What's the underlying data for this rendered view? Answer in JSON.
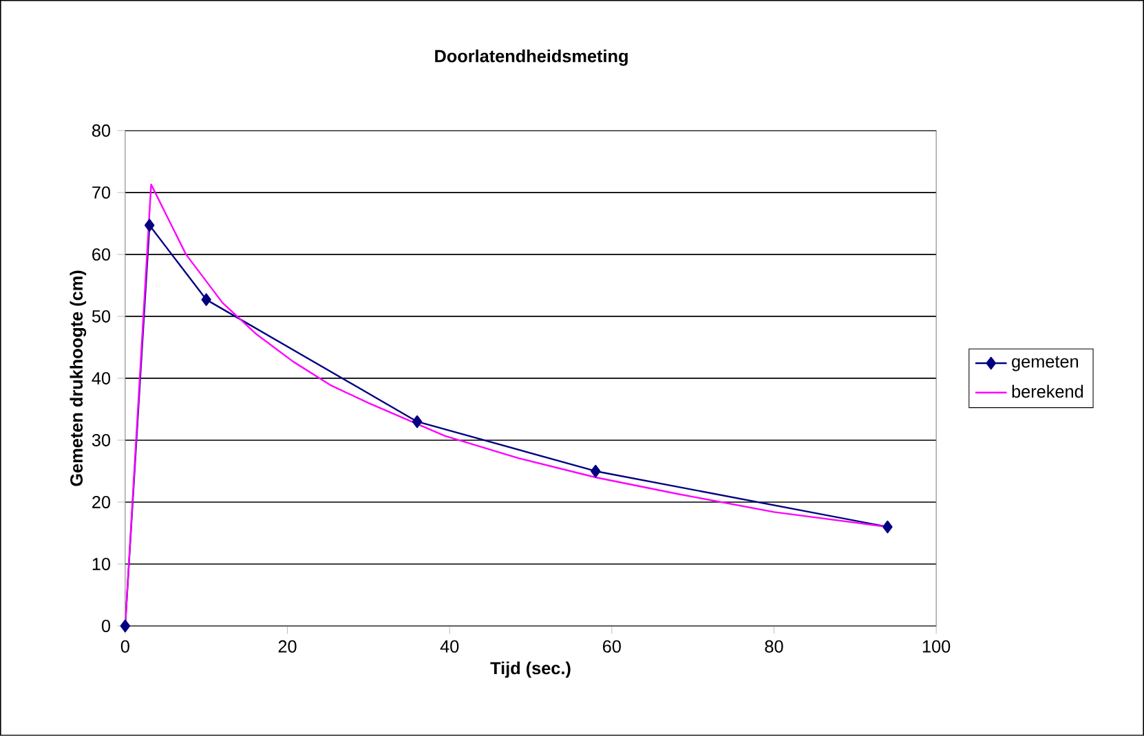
{
  "chart_data": {
    "type": "line",
    "title": "Doorlatendheidsmeting",
    "xlabel": "Tijd (sec.)",
    "ylabel": "Gemeten drukhoogte (cm)",
    "xlim": [
      0,
      100
    ],
    "xticks": [
      0,
      20,
      40,
      60,
      80,
      100
    ],
    "ylim": [
      0,
      80
    ],
    "yticks": [
      0,
      10,
      20,
      30,
      40,
      50,
      60,
      70,
      80
    ],
    "grid": "y",
    "legend": "right",
    "series": [
      {
        "name": "gemeten",
        "color": "#000080",
        "marker": "diamond",
        "x": [
          0,
          3,
          10,
          36,
          58,
          94
        ],
        "values": [
          0,
          64.7,
          52.7,
          33,
          25,
          16
        ]
      },
      {
        "name": "berekend",
        "color": "#ff00ff",
        "marker": "none",
        "x": [
          0,
          3.2,
          7.5,
          12,
          16.2,
          20.7,
          25.3,
          30,
          39.4,
          48.5,
          58,
          68.2,
          80,
          94
        ],
        "values": [
          0,
          71.3,
          60,
          52.2,
          47.1,
          42.7,
          38.9,
          36,
          30.7,
          27.1,
          24,
          21.3,
          18.4,
          16
        ]
      }
    ]
  }
}
